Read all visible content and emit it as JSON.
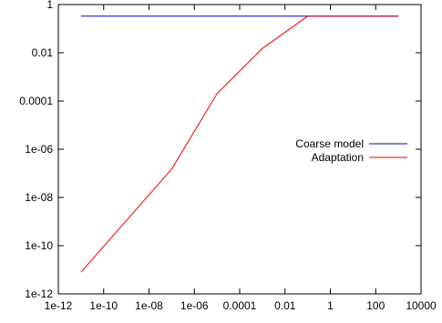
{
  "chart_data": {
    "type": "line",
    "title": "",
    "xlabel": "",
    "ylabel": "",
    "x_scale": "log",
    "y_scale": "log",
    "xlim": [
      1e-12,
      10000
    ],
    "ylim": [
      1e-12,
      1
    ],
    "x_ticks": [
      {
        "value": 1e-12,
        "label": "1e-12"
      },
      {
        "value": 1e-10,
        "label": "1e-10"
      },
      {
        "value": 1e-08,
        "label": "1e-08"
      },
      {
        "value": 1e-06,
        "label": "1e-06"
      },
      {
        "value": 0.0001,
        "label": "0.0001"
      },
      {
        "value": 0.01,
        "label": "0.01"
      },
      {
        "value": 1,
        "label": "1"
      },
      {
        "value": 100,
        "label": "100"
      },
      {
        "value": 10000,
        "label": "10000"
      }
    ],
    "y_ticks": [
      {
        "value": 1e-12,
        "label": "1e-12"
      },
      {
        "value": 1e-10,
        "label": "1e-10"
      },
      {
        "value": 1e-08,
        "label": "1e-08"
      },
      {
        "value": 1e-06,
        "label": "1e-06"
      },
      {
        "value": 0.0001,
        "label": "0.0001"
      },
      {
        "value": 0.01,
        "label": "0.01"
      },
      {
        "value": 1,
        "label": "1"
      }
    ],
    "grid": false,
    "legend_position": "right",
    "series": [
      {
        "name": "Coarse model",
        "color": "#0000cc",
        "points": [
          {
            "x": 1e-11,
            "y": 0.33
          },
          {
            "x": 0.1,
            "y": 0.33
          },
          {
            "x": 1000,
            "y": 0.33
          }
        ]
      },
      {
        "name": "Adaptation",
        "color": "#ee0000",
        "points": [
          {
            "x": 1e-11,
            "y": 8e-12
          },
          {
            "x": 1e-07,
            "y": 1.5e-07
          },
          {
            "x": 1e-05,
            "y": 0.0002
          },
          {
            "x": 0.001,
            "y": 0.015
          },
          {
            "x": 0.1,
            "y": 0.33
          },
          {
            "x": 1000,
            "y": 0.33
          }
        ]
      }
    ]
  }
}
